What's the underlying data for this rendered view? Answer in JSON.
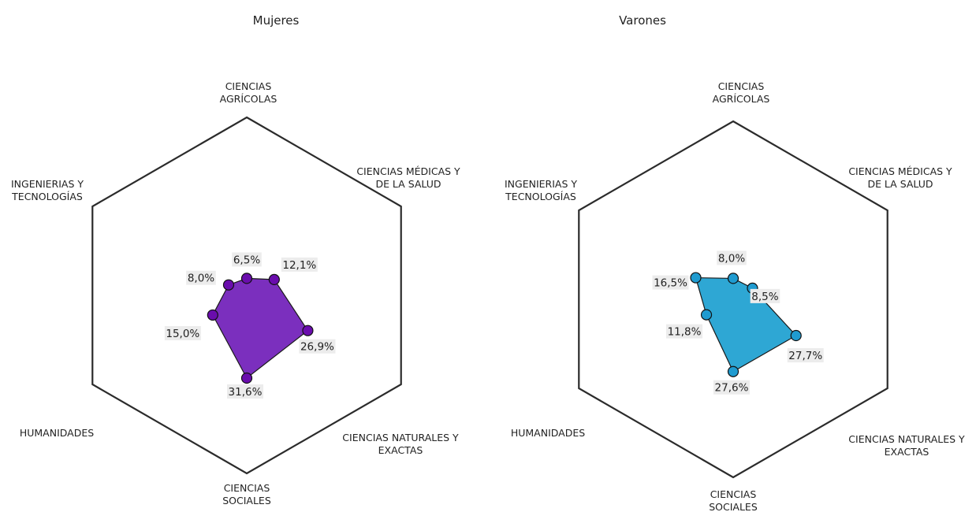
{
  "chart_data": [
    {
      "type": "radar",
      "title": "Mujeres",
      "axes": [
        "CIENCIAS AGRÍCOLAS",
        "CIENCIAS MÉDICAS Y DE LA SALUD",
        "CIENCIAS NATURALES Y EXACTAS",
        "CIENCIAS SOCIALES",
        "HUMANIDADES",
        "INGENIERIAS Y TECNOLOGÍAS"
      ],
      "axis_label_lines": [
        [
          "CIENCIAS",
          "AGRÍCOLAS"
        ],
        [
          "CIENCIAS MÉDICAS Y",
          "DE LA SALUD"
        ],
        [
          "CIENCIAS NATURALES Y",
          "EXACTAS"
        ],
        [
          "CIENCIAS",
          "SOCIALES"
        ],
        [
          "HUMANIDADES"
        ],
        [
          "INGENIERIAS Y",
          "TECNOLOGÍAS"
        ]
      ],
      "values": [
        6.5,
        12.1,
        26.9,
        31.6,
        15.0,
        8.0
      ],
      "labels": [
        "6,5%",
        "12,1%",
        "26,9%",
        "31,6%",
        "15,0%",
        "8,0%"
      ],
      "range": [
        0,
        68
      ],
      "fill_color": "#7b2fbe",
      "marker_color": "#6a0dad"
    },
    {
      "type": "radar",
      "title": "Varones",
      "axes": [
        "CIENCIAS AGRÍCOLAS",
        "CIENCIAS MÉDICAS Y DE LA SALUD",
        "CIENCIAS NATURALES Y EXACTAS",
        "CIENCIAS SOCIALES",
        "HUMANIDADES",
        "INGENIERIAS Y TECNOLOGÍAS"
      ],
      "axis_label_lines": [
        [
          "CIENCIAS",
          "AGRÍCOLAS"
        ],
        [
          "CIENCIAS MÉDICAS Y",
          "DE LA SALUD"
        ],
        [
          "CIENCIAS NATURALES Y",
          "EXACTAS"
        ],
        [
          "CIENCIAS",
          "SOCIALES"
        ],
        [
          "HUMANIDADES"
        ],
        [
          "INGENIERIAS Y",
          "TECNOLOGÍAS"
        ]
      ],
      "values": [
        8.0,
        8.5,
        27.7,
        27.6,
        11.8,
        16.5
      ],
      "labels": [
        "8,0%",
        "8,5%",
        "27,7%",
        "27,6%",
        "11,8%",
        "16,5%"
      ],
      "range": [
        0,
        68
      ],
      "fill_color": "#2ea7d4",
      "marker_color": "#1f9bd0"
    }
  ]
}
